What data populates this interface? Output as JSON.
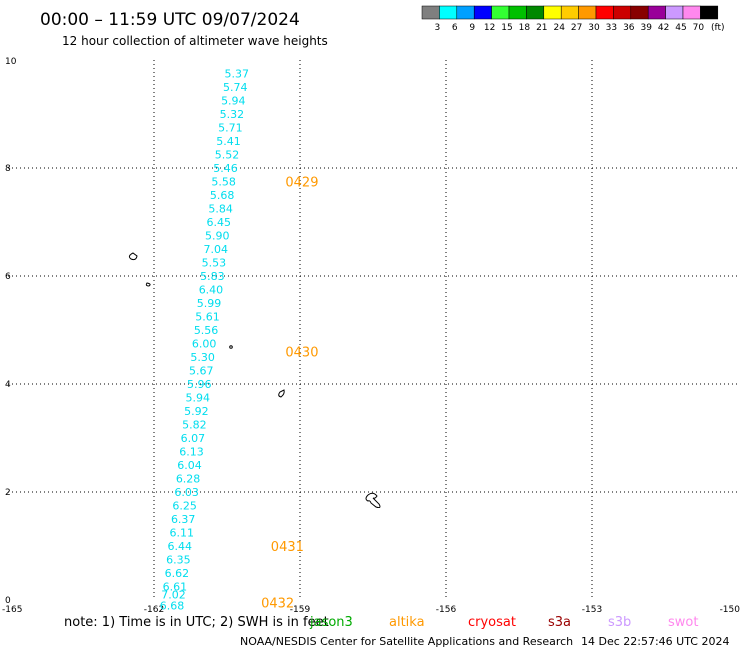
{
  "header": {
    "title": "00:00 – 11:59 UTC 09/07/2024",
    "subtitle": "12 hour collection of altimeter wave heights"
  },
  "legend": {
    "levels": [
      {
        "label": "3",
        "color": "#7f7f7f"
      },
      {
        "label": "6",
        "color": "#00ffff"
      },
      {
        "label": "9",
        "color": "#00a0ff"
      },
      {
        "label": "12",
        "color": "#0000ff"
      },
      {
        "label": "15",
        "color": "#33ff33"
      },
      {
        "label": "18",
        "color": "#00c000"
      },
      {
        "label": "21",
        "color": "#008800"
      },
      {
        "label": "24",
        "color": "#ffff00"
      },
      {
        "label": "27",
        "color": "#ffcc00"
      },
      {
        "label": "30",
        "color": "#ff9900"
      },
      {
        "label": "33",
        "color": "#ff0000"
      },
      {
        "label": "36",
        "color": "#cc0000"
      },
      {
        "label": "39",
        "color": "#880000"
      },
      {
        "label": "42",
        "color": "#990099"
      },
      {
        "label": "45",
        "color": "#cc99ff"
      },
      {
        "label": "70",
        "color": "#ff88ee"
      },
      {
        "label": "",
        "color": "#000000"
      }
    ],
    "unit": "(ft)"
  },
  "footer": {
    "note": "note:  1) Time is in UTC; 2) SWH is in feet",
    "satellites": [
      {
        "name": "jason3",
        "color": "#00aa00"
      },
      {
        "name": "altika",
        "color": "#ff9900"
      },
      {
        "name": "cryosat",
        "color": "#ff0000"
      },
      {
        "name": "s3a",
        "color": "#990000"
      },
      {
        "name": "s3b",
        "color": "#cc99ff"
      },
      {
        "name": "swot",
        "color": "#ff88ee"
      }
    ],
    "credit": "NOAA/NESDIS Center for Satellite Applications and Research",
    "generated": "14 Dec 22:57:46 UTC 2024"
  },
  "chart_data": {
    "type": "scatter",
    "xlim": [
      -165,
      -150
    ],
    "ylim": [
      0,
      10
    ],
    "xticks": [
      "-165",
      "-162",
      "-159",
      "-156",
      "-153",
      "-150"
    ],
    "yticks": [
      "0",
      "2",
      "4",
      "6",
      "8",
      "10"
    ],
    "grid": true,
    "value_color": "#00ddee",
    "pass_color": "#ff9900",
    "points": [
      {
        "lon": -160.3,
        "lat": 9.75,
        "swh": "5.37"
      },
      {
        "lon": -160.33,
        "lat": 9.5,
        "swh": "5.74"
      },
      {
        "lon": -160.37,
        "lat": 9.25,
        "swh": "5.94"
      },
      {
        "lon": -160.4,
        "lat": 9.0,
        "swh": "5.32"
      },
      {
        "lon": -160.43,
        "lat": 8.75,
        "swh": "5.71"
      },
      {
        "lon": -160.47,
        "lat": 8.5,
        "swh": "5.41"
      },
      {
        "lon": -160.5,
        "lat": 8.25,
        "swh": "5.52"
      },
      {
        "lon": -160.53,
        "lat": 8.0,
        "swh": "5.46"
      },
      {
        "lon": -160.57,
        "lat": 7.75,
        "swh": "5.58"
      },
      {
        "lon": -160.6,
        "lat": 7.5,
        "swh": "5.68"
      },
      {
        "lon": -160.63,
        "lat": 7.25,
        "swh": "5.84"
      },
      {
        "lon": -160.67,
        "lat": 7.0,
        "swh": "6.45"
      },
      {
        "lon": -160.7,
        "lat": 6.75,
        "swh": "5.90"
      },
      {
        "lon": -160.73,
        "lat": 6.5,
        "swh": "7.04"
      },
      {
        "lon": -160.77,
        "lat": 6.25,
        "swh": "5.53"
      },
      {
        "lon": -160.8,
        "lat": 6.0,
        "swh": "5.83"
      },
      {
        "lon": -160.83,
        "lat": 5.75,
        "swh": "6.40"
      },
      {
        "lon": -160.87,
        "lat": 5.5,
        "swh": "5.99"
      },
      {
        "lon": -160.9,
        "lat": 5.25,
        "swh": "5.61"
      },
      {
        "lon": -160.93,
        "lat": 5.0,
        "swh": "5.56"
      },
      {
        "lon": -160.97,
        "lat": 4.75,
        "swh": "6.00"
      },
      {
        "lon": -161.0,
        "lat": 4.5,
        "swh": "5.30"
      },
      {
        "lon": -161.03,
        "lat": 4.25,
        "swh": "5.67"
      },
      {
        "lon": -161.07,
        "lat": 4.0,
        "swh": "5.96"
      },
      {
        "lon": -161.1,
        "lat": 3.75,
        "swh": "5.94"
      },
      {
        "lon": -161.13,
        "lat": 3.5,
        "swh": "5.92"
      },
      {
        "lon": -161.17,
        "lat": 3.25,
        "swh": "5.82"
      },
      {
        "lon": -161.2,
        "lat": 3.0,
        "swh": "6.07"
      },
      {
        "lon": -161.23,
        "lat": 2.75,
        "swh": "6.13"
      },
      {
        "lon": -161.27,
        "lat": 2.5,
        "swh": "6.04"
      },
      {
        "lon": -161.3,
        "lat": 2.25,
        "swh": "6.28"
      },
      {
        "lon": -161.33,
        "lat": 2.0,
        "swh": "6.03"
      },
      {
        "lon": -161.37,
        "lat": 1.75,
        "swh": "6.25"
      },
      {
        "lon": -161.4,
        "lat": 1.5,
        "swh": "6.37"
      },
      {
        "lon": -161.43,
        "lat": 1.25,
        "swh": "6.11"
      },
      {
        "lon": -161.47,
        "lat": 1.0,
        "swh": "6.44"
      },
      {
        "lon": -161.5,
        "lat": 0.75,
        "swh": "6.35"
      },
      {
        "lon": -161.53,
        "lat": 0.5,
        "swh": "6.62"
      },
      {
        "lon": -161.57,
        "lat": 0.25,
        "swh": "6.61"
      },
      {
        "lon": -161.6,
        "lat": 0.1,
        "swh": "7.02"
      },
      {
        "lon": -161.63,
        "lat": -0.1,
        "swh": "6.68"
      }
    ],
    "passes": [
      {
        "lon": -159.3,
        "lat": 7.75,
        "label": "0429"
      },
      {
        "lon": -159.3,
        "lat": 4.6,
        "label": "0430"
      },
      {
        "lon": -159.6,
        "lat": 1.0,
        "label": "0431"
      },
      {
        "lon": -159.8,
        "lat": -0.05,
        "label": "0432"
      }
    ]
  }
}
